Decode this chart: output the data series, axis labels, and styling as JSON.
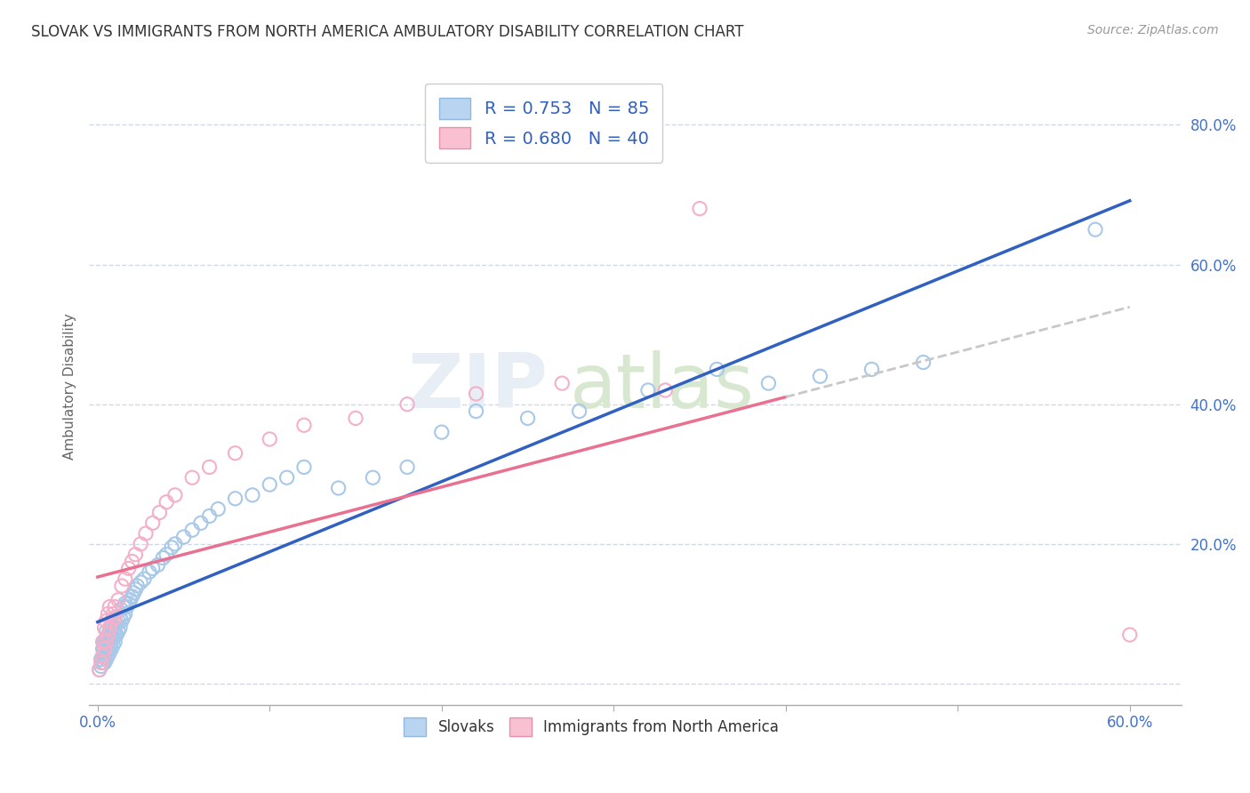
{
  "title": "SLOVAK VS IMMIGRANTS FROM NORTH AMERICA AMBULATORY DISABILITY CORRELATION CHART",
  "source": "Source: ZipAtlas.com",
  "ylabel": "Ambulatory Disability",
  "xlim": [
    -0.005,
    0.63
  ],
  "ylim": [
    -0.03,
    0.88
  ],
  "x_ticks": [
    0.0,
    0.1,
    0.2,
    0.3,
    0.4,
    0.5,
    0.6
  ],
  "x_tick_labels": [
    "0.0%",
    "",
    "",
    "",
    "",
    "",
    "60.0%"
  ],
  "y_ticks": [
    0.0,
    0.2,
    0.4,
    0.6,
    0.8
  ],
  "y_tick_labels": [
    "",
    "20.0%",
    "40.0%",
    "60.0%",
    "80.0%"
  ],
  "legend_r1": "R = 0.753",
  "legend_n1": "N = 85",
  "legend_r2": "R = 0.680",
  "legend_n2": "N = 40",
  "blue_scatter_color": "#a8c8e8",
  "pink_scatter_color": "#f4b0c8",
  "blue_line_color": "#3060c0",
  "pink_line_color": "#e87090",
  "dash_line_color": "#c8c8c8",
  "watermark_color": "#e8eef5",
  "grid_color": "#d0d8e8",
  "blue_points_x": [
    0.001,
    0.002,
    0.002,
    0.003,
    0.003,
    0.003,
    0.004,
    0.004,
    0.004,
    0.004,
    0.005,
    0.005,
    0.005,
    0.005,
    0.005,
    0.006,
    0.006,
    0.006,
    0.006,
    0.007,
    0.007,
    0.007,
    0.007,
    0.008,
    0.008,
    0.008,
    0.008,
    0.009,
    0.009,
    0.009,
    0.01,
    0.01,
    0.01,
    0.01,
    0.011,
    0.011,
    0.012,
    0.012,
    0.013,
    0.013,
    0.014,
    0.015,
    0.015,
    0.016,
    0.016,
    0.017,
    0.018,
    0.019,
    0.02,
    0.021,
    0.022,
    0.023,
    0.025,
    0.027,
    0.03,
    0.032,
    0.035,
    0.038,
    0.04,
    0.043,
    0.045,
    0.05,
    0.055,
    0.06,
    0.065,
    0.07,
    0.08,
    0.09,
    0.1,
    0.11,
    0.12,
    0.14,
    0.16,
    0.18,
    0.2,
    0.22,
    0.25,
    0.28,
    0.32,
    0.36,
    0.39,
    0.42,
    0.45,
    0.48,
    0.58
  ],
  "blue_points_y": [
    0.02,
    0.025,
    0.035,
    0.03,
    0.04,
    0.05,
    0.03,
    0.04,
    0.05,
    0.06,
    0.035,
    0.045,
    0.055,
    0.065,
    0.075,
    0.04,
    0.05,
    0.06,
    0.07,
    0.045,
    0.055,
    0.065,
    0.075,
    0.05,
    0.06,
    0.07,
    0.08,
    0.055,
    0.065,
    0.075,
    0.06,
    0.07,
    0.08,
    0.09,
    0.07,
    0.085,
    0.075,
    0.09,
    0.08,
    0.095,
    0.09,
    0.095,
    0.11,
    0.1,
    0.115,
    0.11,
    0.115,
    0.12,
    0.125,
    0.13,
    0.135,
    0.14,
    0.145,
    0.15,
    0.16,
    0.165,
    0.17,
    0.18,
    0.185,
    0.195,
    0.2,
    0.21,
    0.22,
    0.23,
    0.24,
    0.25,
    0.265,
    0.27,
    0.285,
    0.295,
    0.31,
    0.28,
    0.295,
    0.31,
    0.36,
    0.39,
    0.38,
    0.39,
    0.42,
    0.45,
    0.43,
    0.44,
    0.45,
    0.46,
    0.65
  ],
  "pink_points_x": [
    0.001,
    0.002,
    0.003,
    0.003,
    0.004,
    0.004,
    0.005,
    0.005,
    0.006,
    0.006,
    0.007,
    0.007,
    0.008,
    0.009,
    0.01,
    0.01,
    0.012,
    0.014,
    0.016,
    0.018,
    0.02,
    0.022,
    0.025,
    0.028,
    0.032,
    0.036,
    0.04,
    0.045,
    0.055,
    0.065,
    0.08,
    0.1,
    0.12,
    0.15,
    0.18,
    0.22,
    0.27,
    0.33,
    0.35,
    0.6
  ],
  "pink_points_y": [
    0.02,
    0.03,
    0.04,
    0.06,
    0.05,
    0.08,
    0.06,
    0.09,
    0.07,
    0.1,
    0.08,
    0.11,
    0.09,
    0.1,
    0.095,
    0.11,
    0.12,
    0.14,
    0.15,
    0.165,
    0.175,
    0.185,
    0.2,
    0.215,
    0.23,
    0.245,
    0.26,
    0.27,
    0.295,
    0.31,
    0.33,
    0.35,
    0.37,
    0.38,
    0.4,
    0.415,
    0.43,
    0.42,
    0.68,
    0.07
  ]
}
